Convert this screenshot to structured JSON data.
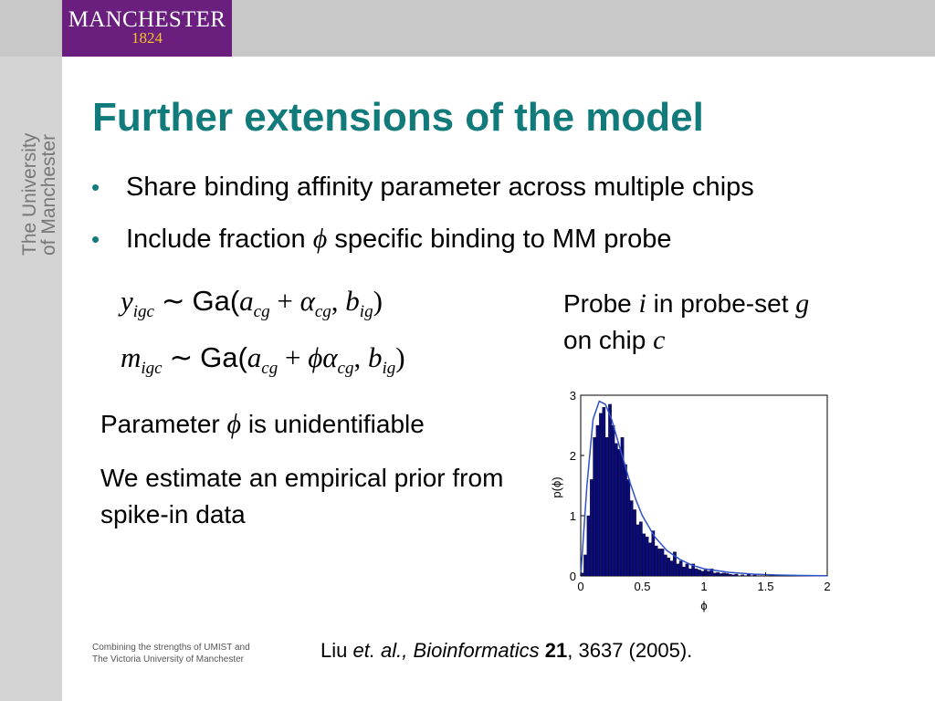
{
  "header": {
    "logo_name": "MANCHESTER",
    "logo_year": "1824",
    "side_line1": "The University",
    "side_line2": "of Manchester"
  },
  "slide": {
    "title": "Further extensions of the model",
    "bullets": [
      {
        "text": "Share binding affinity parameter across multiple chips"
      },
      {
        "pre": "Include fraction",
        "symbol": "ϕ",
        "post": "specific binding to MM probe"
      }
    ],
    "equations": {
      "line1": {
        "lhs": "y",
        "lhs_sub": "igc",
        "tilde": "∼",
        "fn": "Ga(",
        "a": "a",
        "a_sub": "cg",
        "plus": "+",
        "alpha": "α",
        "alpha_sub": "cg",
        "comma": ",",
        "b": "b",
        "b_sub": "ig",
        "close": ")"
      },
      "line2": {
        "lhs": "m",
        "lhs_sub": "igc",
        "tilde": "∼",
        "fn": "Ga(",
        "a": "a",
        "a_sub": "cg",
        "plus": "+",
        "phi": "ϕ",
        "alpha": "α",
        "alpha_sub": "cg",
        "comma": ",",
        "b": "b",
        "b_sub": "ig",
        "close": ")"
      }
    },
    "probe_text": {
      "w1": "Probe",
      "v1": "i",
      "w2": "in probe-set",
      "v2": "g",
      "w3": "on chip",
      "v3": "c"
    },
    "param_text": {
      "pre": "Parameter",
      "symbol": "ϕ",
      "post": "is unidentifiable"
    },
    "prior_text": "We estimate an empirical prior from spike-in data",
    "footer_line1": "Combining the strengths of UMIST and",
    "footer_line2": "The Victoria University of Manchester",
    "citation": {
      "author": "Liu",
      "etal": "et. al., Bioinformatics",
      "volume": "21",
      "rest": ", 3637 (2005)."
    }
  },
  "colors": {
    "title": "#117a7b",
    "logo_bg": "#6a1f7f",
    "logo_year": "#f4c12c",
    "bar": "#0b0b7a",
    "curve": "#3050c8"
  },
  "chart_data": {
    "type": "bar",
    "xlabel": "ϕ",
    "ylabel": "p(ϕ)",
    "xlim": [
      0,
      2
    ],
    "ylim": [
      0,
      3
    ],
    "xticks": [
      0,
      0.5,
      1,
      1.5,
      2
    ],
    "xtick_labels": [
      "0",
      "0.5",
      "1",
      "1.5",
      "2"
    ],
    "yticks": [
      0,
      1,
      2,
      3
    ],
    "ytick_labels": [
      "0",
      "1",
      "2",
      "3"
    ],
    "bin_width": 0.025,
    "bin_starts": [
      0.0,
      0.025,
      0.05,
      0.075,
      0.1,
      0.125,
      0.15,
      0.175,
      0.2,
      0.225,
      0.25,
      0.275,
      0.3,
      0.325,
      0.35,
      0.375,
      0.4,
      0.425,
      0.45,
      0.475,
      0.5,
      0.525,
      0.55,
      0.575,
      0.6,
      0.625,
      0.65,
      0.675,
      0.7,
      0.725,
      0.75,
      0.775,
      0.8,
      0.825,
      0.85,
      0.875,
      0.9,
      0.925,
      0.95,
      0.975,
      1.0,
      1.025,
      1.05,
      1.075,
      1.1,
      1.125,
      1.15,
      1.175,
      1.2,
      1.225,
      1.25,
      1.3,
      1.35,
      1.4
    ],
    "values": [
      0.05,
      0.35,
      1.0,
      1.6,
      2.3,
      2.5,
      2.7,
      2.8,
      2.3,
      2.85,
      2.5,
      2.2,
      2.1,
      2.3,
      1.85,
      1.6,
      1.25,
      1.1,
      0.85,
      0.9,
      0.7,
      0.65,
      0.55,
      0.75,
      0.5,
      0.45,
      0.45,
      0.35,
      0.3,
      0.25,
      0.4,
      0.2,
      0.25,
      0.15,
      0.2,
      0.12,
      0.2,
      0.12,
      0.1,
      0.08,
      0.1,
      0.08,
      0.12,
      0.05,
      0.06,
      0.04,
      0.05,
      0.04,
      0.03,
      0.02,
      0.03,
      0.02,
      0.04,
      0.02
    ],
    "density_curve": {
      "x": [
        0.0,
        0.05,
        0.1,
        0.15,
        0.2,
        0.25,
        0.3,
        0.35,
        0.4,
        0.45,
        0.5,
        0.6,
        0.7,
        0.8,
        0.9,
        1.0,
        1.2,
        1.4,
        1.6,
        1.8,
        2.0
      ],
      "y": [
        0.0,
        1.5,
        2.6,
        2.9,
        2.85,
        2.6,
        2.25,
        1.9,
        1.55,
        1.25,
        1.0,
        0.65,
        0.42,
        0.28,
        0.18,
        0.12,
        0.06,
        0.03,
        0.015,
        0.008,
        0.004
      ]
    }
  }
}
